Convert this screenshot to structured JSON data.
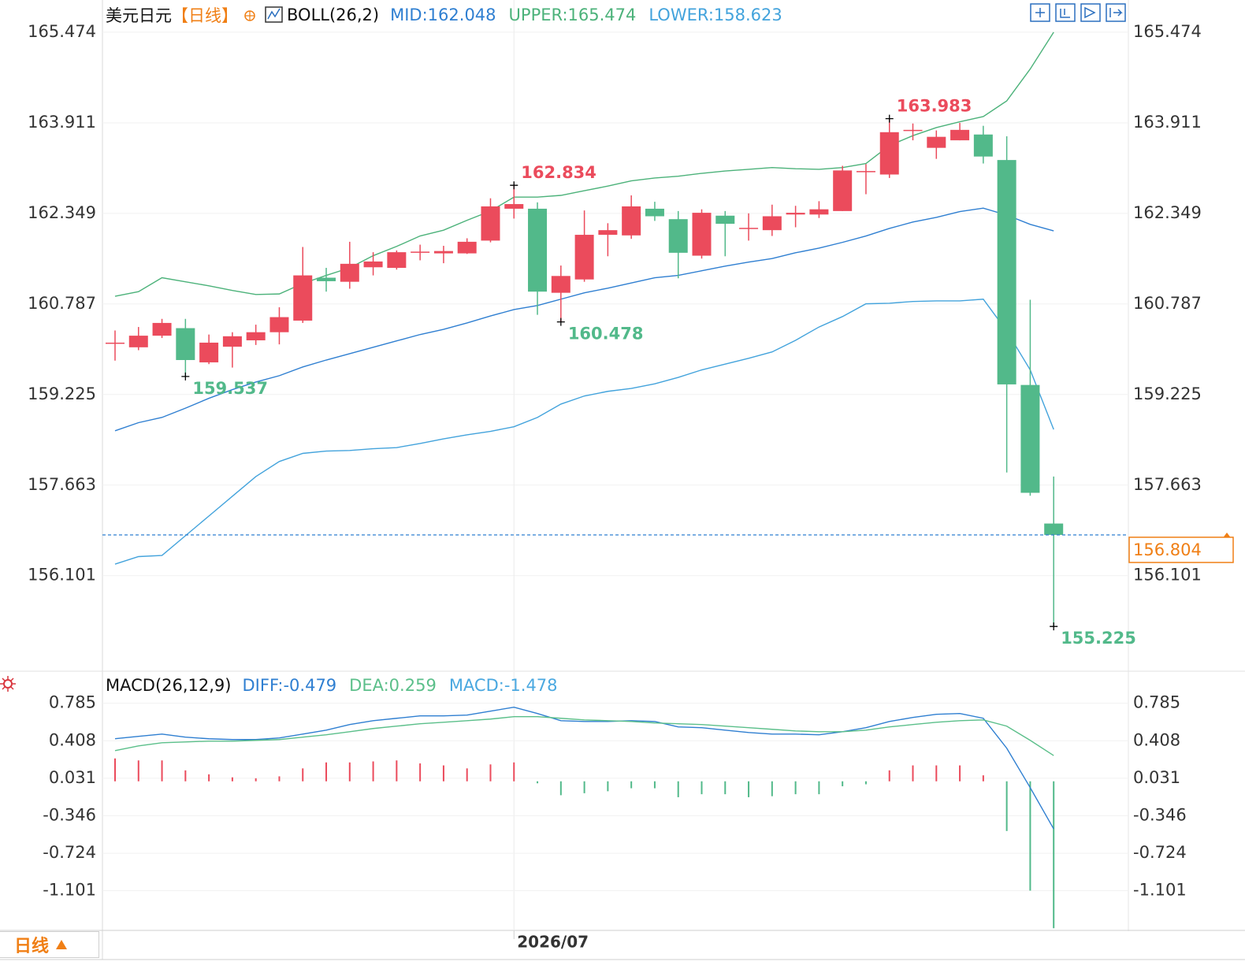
{
  "chart_data": [
    {
      "type": "candlestick",
      "title": "美元日元",
      "period": "【日线】",
      "indicator": "BOLL(26,2)",
      "categories": [
        null,
        null,
        null,
        null,
        null,
        null,
        null,
        null,
        null,
        null,
        null,
        null,
        null,
        null,
        null,
        null,
        null,
        "2026/07",
        null,
        null,
        null,
        null,
        null,
        null,
        null,
        null,
        null,
        null,
        null,
        null,
        null,
        null,
        null,
        null,
        null,
        null,
        null,
        null,
        null,
        null,
        null
      ],
      "open": [
        160.1,
        160.04,
        160.24,
        160.37,
        159.78,
        160.05,
        160.16,
        160.3,
        160.5,
        161.24,
        161.17,
        161.42,
        161.41,
        161.67,
        161.66,
        161.66,
        161.88,
        162.43,
        162.43,
        160.98,
        161.21,
        161.98,
        161.97,
        162.43,
        162.25,
        161.62,
        162.31,
        162.08,
        162.06,
        162.33,
        162.33,
        162.39,
        163.07,
        163.02,
        163.77,
        163.48,
        163.61,
        163.71,
        163.27,
        159.39,
        157.0
      ],
      "high": [
        160.33,
        160.39,
        160.53,
        160.53,
        160.26,
        160.3,
        160.43,
        160.73,
        161.77,
        161.41,
        161.86,
        161.68,
        161.71,
        161.81,
        161.79,
        161.92,
        162.61,
        162.834,
        162.54,
        161.45,
        162.4,
        162.18,
        162.66,
        162.55,
        162.39,
        162.42,
        162.39,
        162.35,
        162.5,
        162.48,
        162.56,
        163.17,
        163.2,
        163.983,
        163.9,
        163.78,
        163.91,
        163.86,
        163.68,
        160.86,
        157.81
      ],
      "low": [
        159.81,
        159.99,
        160.2,
        159.537,
        159.75,
        159.69,
        160.08,
        160.09,
        160.46,
        161.0,
        161.05,
        161.28,
        161.38,
        161.54,
        161.49,
        161.65,
        161.85,
        162.26,
        160.6,
        160.478,
        161.17,
        161.61,
        161.91,
        162.22,
        161.23,
        161.57,
        161.61,
        161.88,
        161.96,
        162.11,
        162.27,
        162.39,
        162.68,
        162.96,
        163.61,
        163.29,
        163.61,
        163.21,
        157.88,
        157.48,
        155.225
      ],
      "close": [
        160.12,
        160.24,
        160.46,
        159.82,
        160.12,
        160.23,
        160.3,
        160.56,
        161.28,
        161.18,
        161.48,
        161.52,
        161.68,
        161.69,
        161.7,
        161.86,
        162.47,
        162.51,
        161.0,
        161.27,
        161.98,
        162.06,
        162.47,
        162.3,
        161.67,
        162.36,
        162.17,
        162.1,
        162.3,
        162.36,
        162.42,
        163.09,
        163.08,
        163.75,
        163.79,
        163.67,
        163.79,
        163.33,
        159.4,
        157.53,
        156.804
      ],
      "up_color": "#eb4b5c",
      "down_color": "#52b98a",
      "marked_highs": [
        17,
        33
      ],
      "marked_lows": [
        3,
        19,
        40
      ],
      "series": [
        {
          "name": "MID:162.048",
          "color": "#2f7fd1",
          "values": [
            158.6,
            158.74,
            158.83,
            158.99,
            159.16,
            159.31,
            159.44,
            159.55,
            159.7,
            159.82,
            159.93,
            160.04,
            160.15,
            160.26,
            160.35,
            160.46,
            160.58,
            160.69,
            160.76,
            160.87,
            160.98,
            161.06,
            161.15,
            161.24,
            161.28,
            161.36,
            161.44,
            161.51,
            161.57,
            161.67,
            161.75,
            161.85,
            161.96,
            162.09,
            162.2,
            162.28,
            162.38,
            162.44,
            162.32,
            162.16,
            162.048
          ]
        },
        {
          "name": "UPPER:165.474",
          "color": "#4cb27a",
          "values": [
            160.92,
            161.0,
            161.24,
            161.17,
            161.1,
            161.02,
            160.95,
            160.96,
            161.14,
            161.28,
            161.41,
            161.62,
            161.78,
            161.96,
            162.06,
            162.23,
            162.39,
            162.63,
            162.63,
            162.66,
            162.74,
            162.82,
            162.91,
            162.96,
            162.99,
            163.04,
            163.08,
            163.11,
            163.14,
            163.12,
            163.11,
            163.14,
            163.21,
            163.52,
            163.69,
            163.83,
            163.93,
            164.02,
            164.29,
            164.84,
            165.474
          ]
        },
        {
          "name": "LOWER:158.623",
          "color": "#43a3dc",
          "values": [
            156.3,
            156.43,
            156.45,
            156.79,
            157.13,
            157.47,
            157.81,
            158.07,
            158.21,
            158.25,
            158.26,
            158.29,
            158.31,
            158.38,
            158.46,
            158.53,
            158.59,
            158.67,
            158.83,
            159.06,
            159.2,
            159.28,
            159.33,
            159.41,
            159.52,
            159.65,
            159.75,
            159.85,
            159.96,
            160.16,
            160.39,
            160.57,
            160.79,
            160.8,
            160.83,
            160.84,
            160.84,
            160.87,
            160.32,
            159.65,
            158.623
          ]
        }
      ],
      "ylim": [
        154.48,
        166.03
      ],
      "yticks": [
        156.101,
        157.663,
        159.225,
        160.787,
        162.349,
        163.911,
        165.474
      ],
      "grid": true
    },
    {
      "type": "macd",
      "title": "MACD(26,12,9)",
      "series": [
        {
          "name": "DIFF:-0.479",
          "color": "#2f7fd1",
          "values": [
            0.428,
            0.452,
            0.475,
            0.444,
            0.428,
            0.42,
            0.42,
            0.436,
            0.475,
            0.515,
            0.571,
            0.61,
            0.634,
            0.658,
            0.658,
            0.666,
            0.706,
            0.745,
            0.682,
            0.61,
            0.602,
            0.602,
            0.61,
            0.602,
            0.547,
            0.539,
            0.515,
            0.491,
            0.475,
            0.475,
            0.468,
            0.499,
            0.539,
            0.602,
            0.642,
            0.674,
            0.682,
            0.634,
            0.333,
            -0.064,
            -0.479
          ]
        },
        {
          "name": "DEA:0.259",
          "color": "#5bbf8a",
          "values": [
            0.309,
            0.356,
            0.388,
            0.396,
            0.404,
            0.404,
            0.412,
            0.42,
            0.444,
            0.468,
            0.499,
            0.531,
            0.555,
            0.579,
            0.594,
            0.61,
            0.626,
            0.65,
            0.65,
            0.634,
            0.618,
            0.61,
            0.602,
            0.587,
            0.579,
            0.571,
            0.555,
            0.539,
            0.523,
            0.507,
            0.499,
            0.499,
            0.515,
            0.547,
            0.571,
            0.594,
            0.61,
            0.618,
            0.555,
            0.412,
            0.259
          ]
        }
      ],
      "histogram": {
        "name": "MACD:-1.478",
        "color": "#4aa8e0",
        "up_color": "#eb4b5c",
        "down_color": "#52b98a",
        "values": [
          0.23,
          0.21,
          0.21,
          0.11,
          0.07,
          0.04,
          0.03,
          0.05,
          0.13,
          0.19,
          0.19,
          0.2,
          0.21,
          0.18,
          0.16,
          0.13,
          0.17,
          0.19,
          -0.02,
          -0.14,
          -0.12,
          -0.1,
          -0.07,
          -0.07,
          -0.16,
          -0.13,
          -0.13,
          -0.16,
          -0.15,
          -0.13,
          -0.13,
          -0.05,
          -0.03,
          0.11,
          0.16,
          0.16,
          0.16,
          0.06,
          -0.5,
          -1.1,
          -1.478
        ]
      },
      "ylim": [
        -1.5,
        1.06
      ],
      "yticks": [
        -1.101,
        -0.724,
        -0.346,
        0.031,
        0.408,
        0.785
      ],
      "grid": true
    }
  ],
  "tab_label": "日线"
}
